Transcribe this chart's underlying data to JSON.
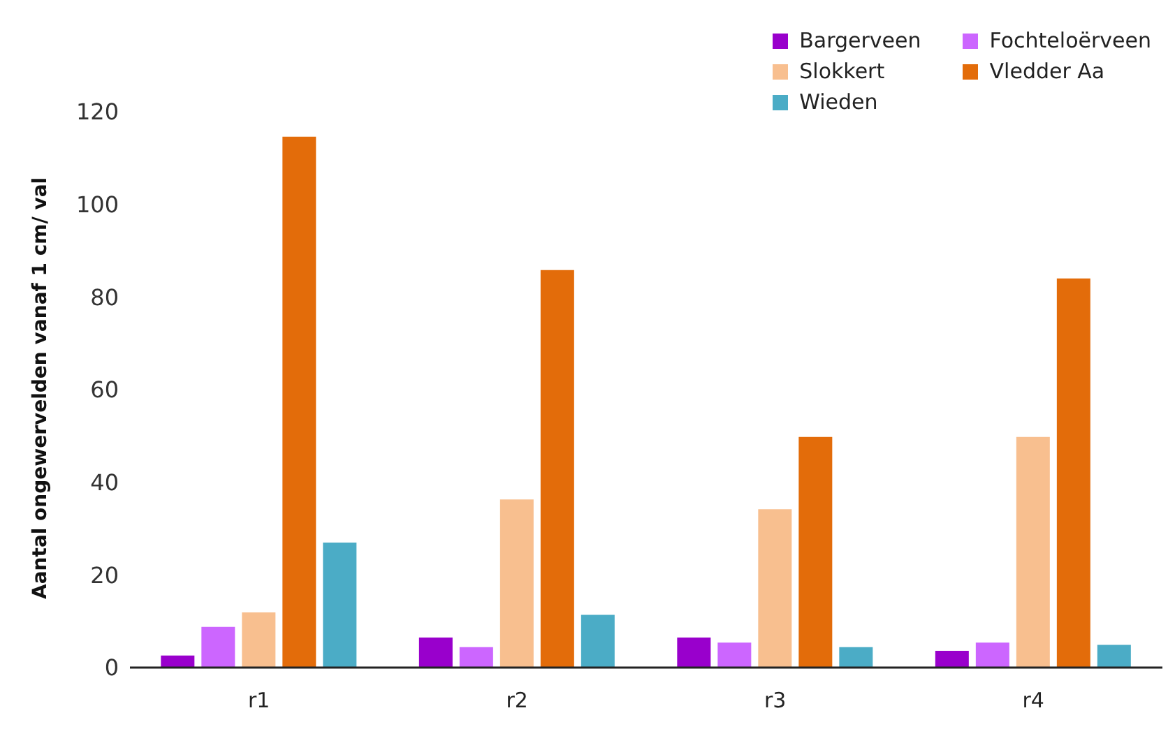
{
  "chart_data": {
    "type": "bar",
    "ylabel": "Aantal ongewervelden vanaf 1 cm/ val",
    "categories": [
      "r1",
      "r2",
      "r3",
      "r4"
    ],
    "series": [
      {
        "name": "Bargerveen",
        "color": "#9900cc",
        "values": [
          2.6,
          6.5,
          6.5,
          3.6
        ]
      },
      {
        "name": "Fochteloërveen",
        "color": "#cc66ff",
        "values": [
          8.8,
          4.4,
          5.4,
          5.4
        ]
      },
      {
        "name": "Slokkert",
        "color": "#f8bf8f",
        "values": [
          11.9,
          36.3,
          34.2,
          49.8
        ]
      },
      {
        "name": "Vledder Aa",
        "color": "#e36c0a",
        "values": [
          114.6,
          85.8,
          49.8,
          84
        ]
      },
      {
        "name": "Wieden",
        "color": "#4bacc6",
        "values": [
          27,
          11.4,
          4.4,
          4.9
        ]
      }
    ],
    "ylim": [
      0,
      120
    ],
    "yticks": [
      0,
      20,
      40,
      60,
      80,
      100,
      120
    ],
    "grid": false,
    "legend": "top right"
  }
}
